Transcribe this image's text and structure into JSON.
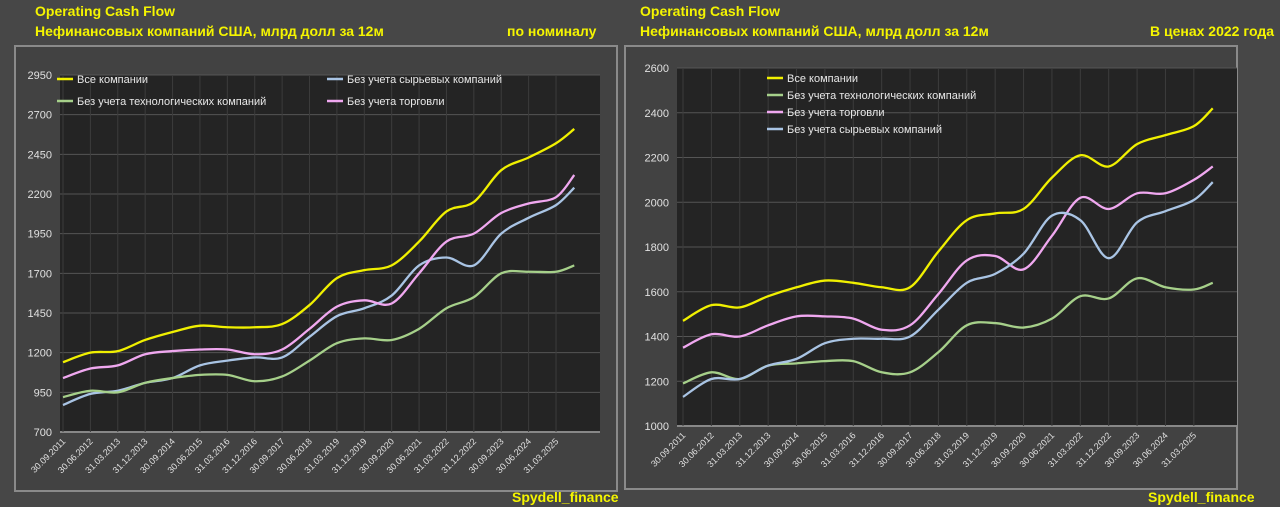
{
  "chart_data": [
    {
      "type": "line",
      "title": "Operating Cash Flow",
      "subtitle": "Нефинансовых компаний США, млрд долл за 12м",
      "note": "по номиналу",
      "watermark": "Spydell_finance",
      "ylim": [
        700,
        2950
      ],
      "yticks": [
        700,
        950,
        1200,
        1450,
        1700,
        1950,
        2200,
        2450,
        2700,
        2950
      ],
      "x_quarters": [
        0,
        3,
        6,
        9,
        12,
        15,
        18,
        21,
        24,
        27,
        30,
        33,
        36,
        39,
        42,
        45,
        48,
        51,
        54,
        56
      ],
      "xticks": [
        "30.09.2011",
        "30.06.2012",
        "31.03.2013",
        "31.12.2013",
        "30.09.2014",
        "30.06.2015",
        "31.03.2016",
        "31.12.2016",
        "30.09.2017",
        "30.06.2018",
        "31.03.2019",
        "31.12.2019",
        "30.09.2020",
        "30.06.2021",
        "31.03.2022",
        "31.12.2022",
        "30.09.2023",
        "30.06.2024",
        "31.03.2025"
      ],
      "series": [
        {
          "name": "Все компании",
          "color": "#f0f000",
          "values": [
            1140,
            1200,
            1210,
            1280,
            1330,
            1370,
            1360,
            1360,
            1380,
            1500,
            1670,
            1720,
            1750,
            1900,
            2090,
            2150,
            2350,
            2430,
            2520,
            2610
          ]
        },
        {
          "name": "Без учета сырьевых компаний",
          "color": "#a9c4e4",
          "values": [
            870,
            940,
            960,
            1010,
            1040,
            1120,
            1150,
            1170,
            1170,
            1300,
            1430,
            1480,
            1560,
            1750,
            1800,
            1750,
            1950,
            2050,
            2130,
            2240
          ]
        },
        {
          "name": "Без учета технологических компаний",
          "color": "#a6d08a",
          "values": [
            920,
            960,
            950,
            1010,
            1040,
            1060,
            1060,
            1020,
            1050,
            1150,
            1260,
            1290,
            1280,
            1350,
            1480,
            1550,
            1700,
            1710,
            1710,
            1750
          ]
        },
        {
          "name": "Без учета торговли",
          "color": "#f0a8f0",
          "values": [
            1040,
            1100,
            1120,
            1190,
            1210,
            1220,
            1220,
            1190,
            1220,
            1350,
            1490,
            1530,
            1510,
            1700,
            1900,
            1950,
            2080,
            2140,
            2180,
            2320
          ]
        }
      ]
    },
    {
      "type": "line",
      "title": "Operating Cash Flow",
      "subtitle": "Нефинансовых компаний США, млрд долл за 12м",
      "note": "В ценах 2022 года",
      "watermark": "Spydell_finance",
      "ylim": [
        1000,
        2600
      ],
      "yticks": [
        1000,
        1200,
        1400,
        1600,
        1800,
        2000,
        2200,
        2400,
        2600
      ],
      "x_quarters": [
        0,
        3,
        6,
        9,
        12,
        15,
        18,
        21,
        24,
        27,
        30,
        33,
        36,
        39,
        42,
        45,
        48,
        51,
        54,
        56
      ],
      "xticks": [
        "30.09.2011",
        "30.06.2012",
        "31.03.2013",
        "31.12.2013",
        "30.09.2014",
        "30.06.2015",
        "31.03.2016",
        "31.12.2016",
        "30.09.2017",
        "30.06.2018",
        "31.03.2019",
        "31.12.2019",
        "30.09.2020",
        "30.06.2021",
        "31.03.2022",
        "31.12.2022",
        "30.09.2023",
        "30.06.2024",
        "31.03.2025"
      ],
      "series": [
        {
          "name": "Все компании",
          "color": "#f0f000",
          "values": [
            1470,
            1540,
            1530,
            1580,
            1620,
            1650,
            1640,
            1620,
            1620,
            1780,
            1920,
            1950,
            1970,
            2110,
            2210,
            2160,
            2260,
            2300,
            2340,
            2420
          ]
        },
        {
          "name": "Без учета технологических компаний",
          "color": "#a6d08a",
          "values": [
            1190,
            1240,
            1210,
            1270,
            1280,
            1290,
            1290,
            1240,
            1240,
            1330,
            1450,
            1460,
            1440,
            1480,
            1580,
            1570,
            1660,
            1620,
            1610,
            1640
          ]
        },
        {
          "name": "Без учета торговли",
          "color": "#f0a8f0",
          "values": [
            1350,
            1410,
            1400,
            1450,
            1490,
            1490,
            1480,
            1430,
            1450,
            1590,
            1740,
            1760,
            1700,
            1850,
            2020,
            1970,
            2040,
            2040,
            2100,
            2160
          ]
        },
        {
          "name": "Без учета сырьевых компаний",
          "color": "#a9c4e4",
          "values": [
            1130,
            1210,
            1210,
            1270,
            1300,
            1370,
            1390,
            1390,
            1400,
            1520,
            1640,
            1680,
            1770,
            1940,
            1920,
            1750,
            1910,
            1960,
            2010,
            2090
          ]
        }
      ]
    }
  ]
}
